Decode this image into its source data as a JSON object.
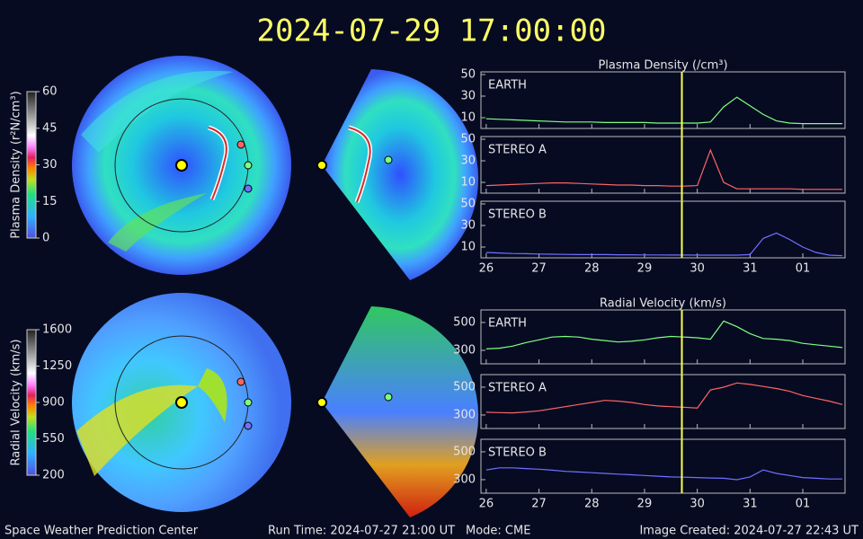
{
  "header": {
    "timestamp": "2024-07-29 17:00:00"
  },
  "colorbars": [
    {
      "label": "Plasma Density (r²N/cm³)",
      "lim": [
        0,
        60
      ],
      "ticks": [
        0,
        15,
        30,
        45,
        60
      ]
    },
    {
      "label": "Radial Velocity (km/s)",
      "lim": [
        200,
        1600
      ],
      "ticks": [
        200,
        550,
        900,
        1250,
        1600
      ]
    }
  ],
  "chart_data": [
    {
      "type": "line",
      "title": "Plasma Density (/cm³)",
      "x": [
        26,
        26.25,
        26.5,
        26.75,
        27,
        27.25,
        27.5,
        27.75,
        28,
        28.25,
        28.5,
        28.75,
        29,
        29.25,
        29.5,
        29.75,
        30,
        30.25,
        30.5,
        30.75,
        31,
        31.25,
        31.5,
        31.75,
        32,
        32.25,
        32.5,
        32.75
      ],
      "xlim": [
        25.9,
        32.8
      ],
      "xticks": [
        26,
        27,
        28,
        29,
        30,
        31,
        {
          "value": 32,
          "label": "01"
        }
      ],
      "ylim": [
        0,
        52.5
      ],
      "yticks": [
        10,
        30,
        50
      ],
      "marker_x": 29.708,
      "series": [
        {
          "name": "EARTH",
          "color": "#80ff80",
          "values": [
            9,
            8.5,
            8,
            7.5,
            7,
            6.5,
            6,
            6,
            6,
            5.5,
            5.5,
            5.5,
            5.5,
            5,
            5,
            5,
            5,
            6,
            20,
            29,
            21,
            13,
            7,
            5,
            4.5,
            4.5,
            4.5,
            4.5
          ]
        },
        {
          "name": "STEREO A",
          "color": "#ff6464",
          "values": [
            7,
            7.5,
            8,
            8.5,
            9,
            9.5,
            9.5,
            9,
            8.5,
            8,
            7.5,
            7.5,
            7,
            7,
            6.5,
            6.5,
            7,
            40,
            10,
            4,
            4,
            4,
            4,
            4,
            3.5,
            3.5,
            3.5,
            3.5
          ]
        },
        {
          "name": "STEREO B",
          "color": "#7070ff",
          "values": [
            5,
            4.5,
            4,
            3.8,
            3.5,
            3.3,
            3.2,
            3,
            3,
            3,
            2.8,
            2.8,
            2.7,
            2.7,
            2.6,
            2.6,
            2.5,
            2.5,
            2.5,
            2.5,
            3,
            18,
            23,
            17,
            10,
            5,
            2.5,
            2
          ]
        }
      ]
    },
    {
      "type": "line",
      "title": "Radial Velocity (km/s)",
      "x": [
        26,
        26.25,
        26.5,
        26.75,
        27,
        27.25,
        27.5,
        27.75,
        28,
        28.25,
        28.5,
        28.75,
        29,
        29.25,
        29.5,
        29.75,
        30,
        30.25,
        30.5,
        30.75,
        31,
        31.25,
        31.5,
        31.75,
        32,
        32.25,
        32.5,
        32.75
      ],
      "xlim": [
        25.9,
        32.8
      ],
      "xticks": [
        26,
        27,
        28,
        29,
        30,
        31,
        {
          "value": 32,
          "label": "01"
        }
      ],
      "ylim": [
        203,
        590
      ],
      "yticks": [
        300,
        500
      ],
      "marker_x": 29.708,
      "series": [
        {
          "name": "EARTH",
          "color": "#80ff80",
          "values": [
            310,
            315,
            330,
            355,
            375,
            395,
            400,
            395,
            380,
            370,
            360,
            365,
            375,
            390,
            400,
            395,
            390,
            380,
            510,
            470,
            420,
            385,
            380,
            370,
            350,
            340,
            330,
            320
          ]
        },
        {
          "name": "STEREO A",
          "color": "#ff6464",
          "values": [
            320,
            317,
            315,
            322,
            330,
            345,
            360,
            375,
            390,
            405,
            400,
            390,
            375,
            365,
            360,
            355,
            350,
            480,
            500,
            530,
            520,
            505,
            490,
            470,
            440,
            420,
            400,
            375
          ]
        },
        {
          "name": "STEREO B",
          "color": "#7070ff",
          "values": [
            370,
            385,
            385,
            380,
            375,
            368,
            360,
            355,
            350,
            345,
            340,
            335,
            330,
            325,
            320,
            318,
            315,
            312,
            310,
            300,
            320,
            370,
            345,
            330,
            315,
            310,
            305,
            305
          ]
        }
      ]
    }
  ],
  "footer": {
    "org": "Space Weather Prediction Center",
    "run_time": "Run Time: 2024-07-27 21:00 UT",
    "mode": "Mode: CME",
    "created": "Image Created: 2024-07-27 22:43 UT"
  }
}
